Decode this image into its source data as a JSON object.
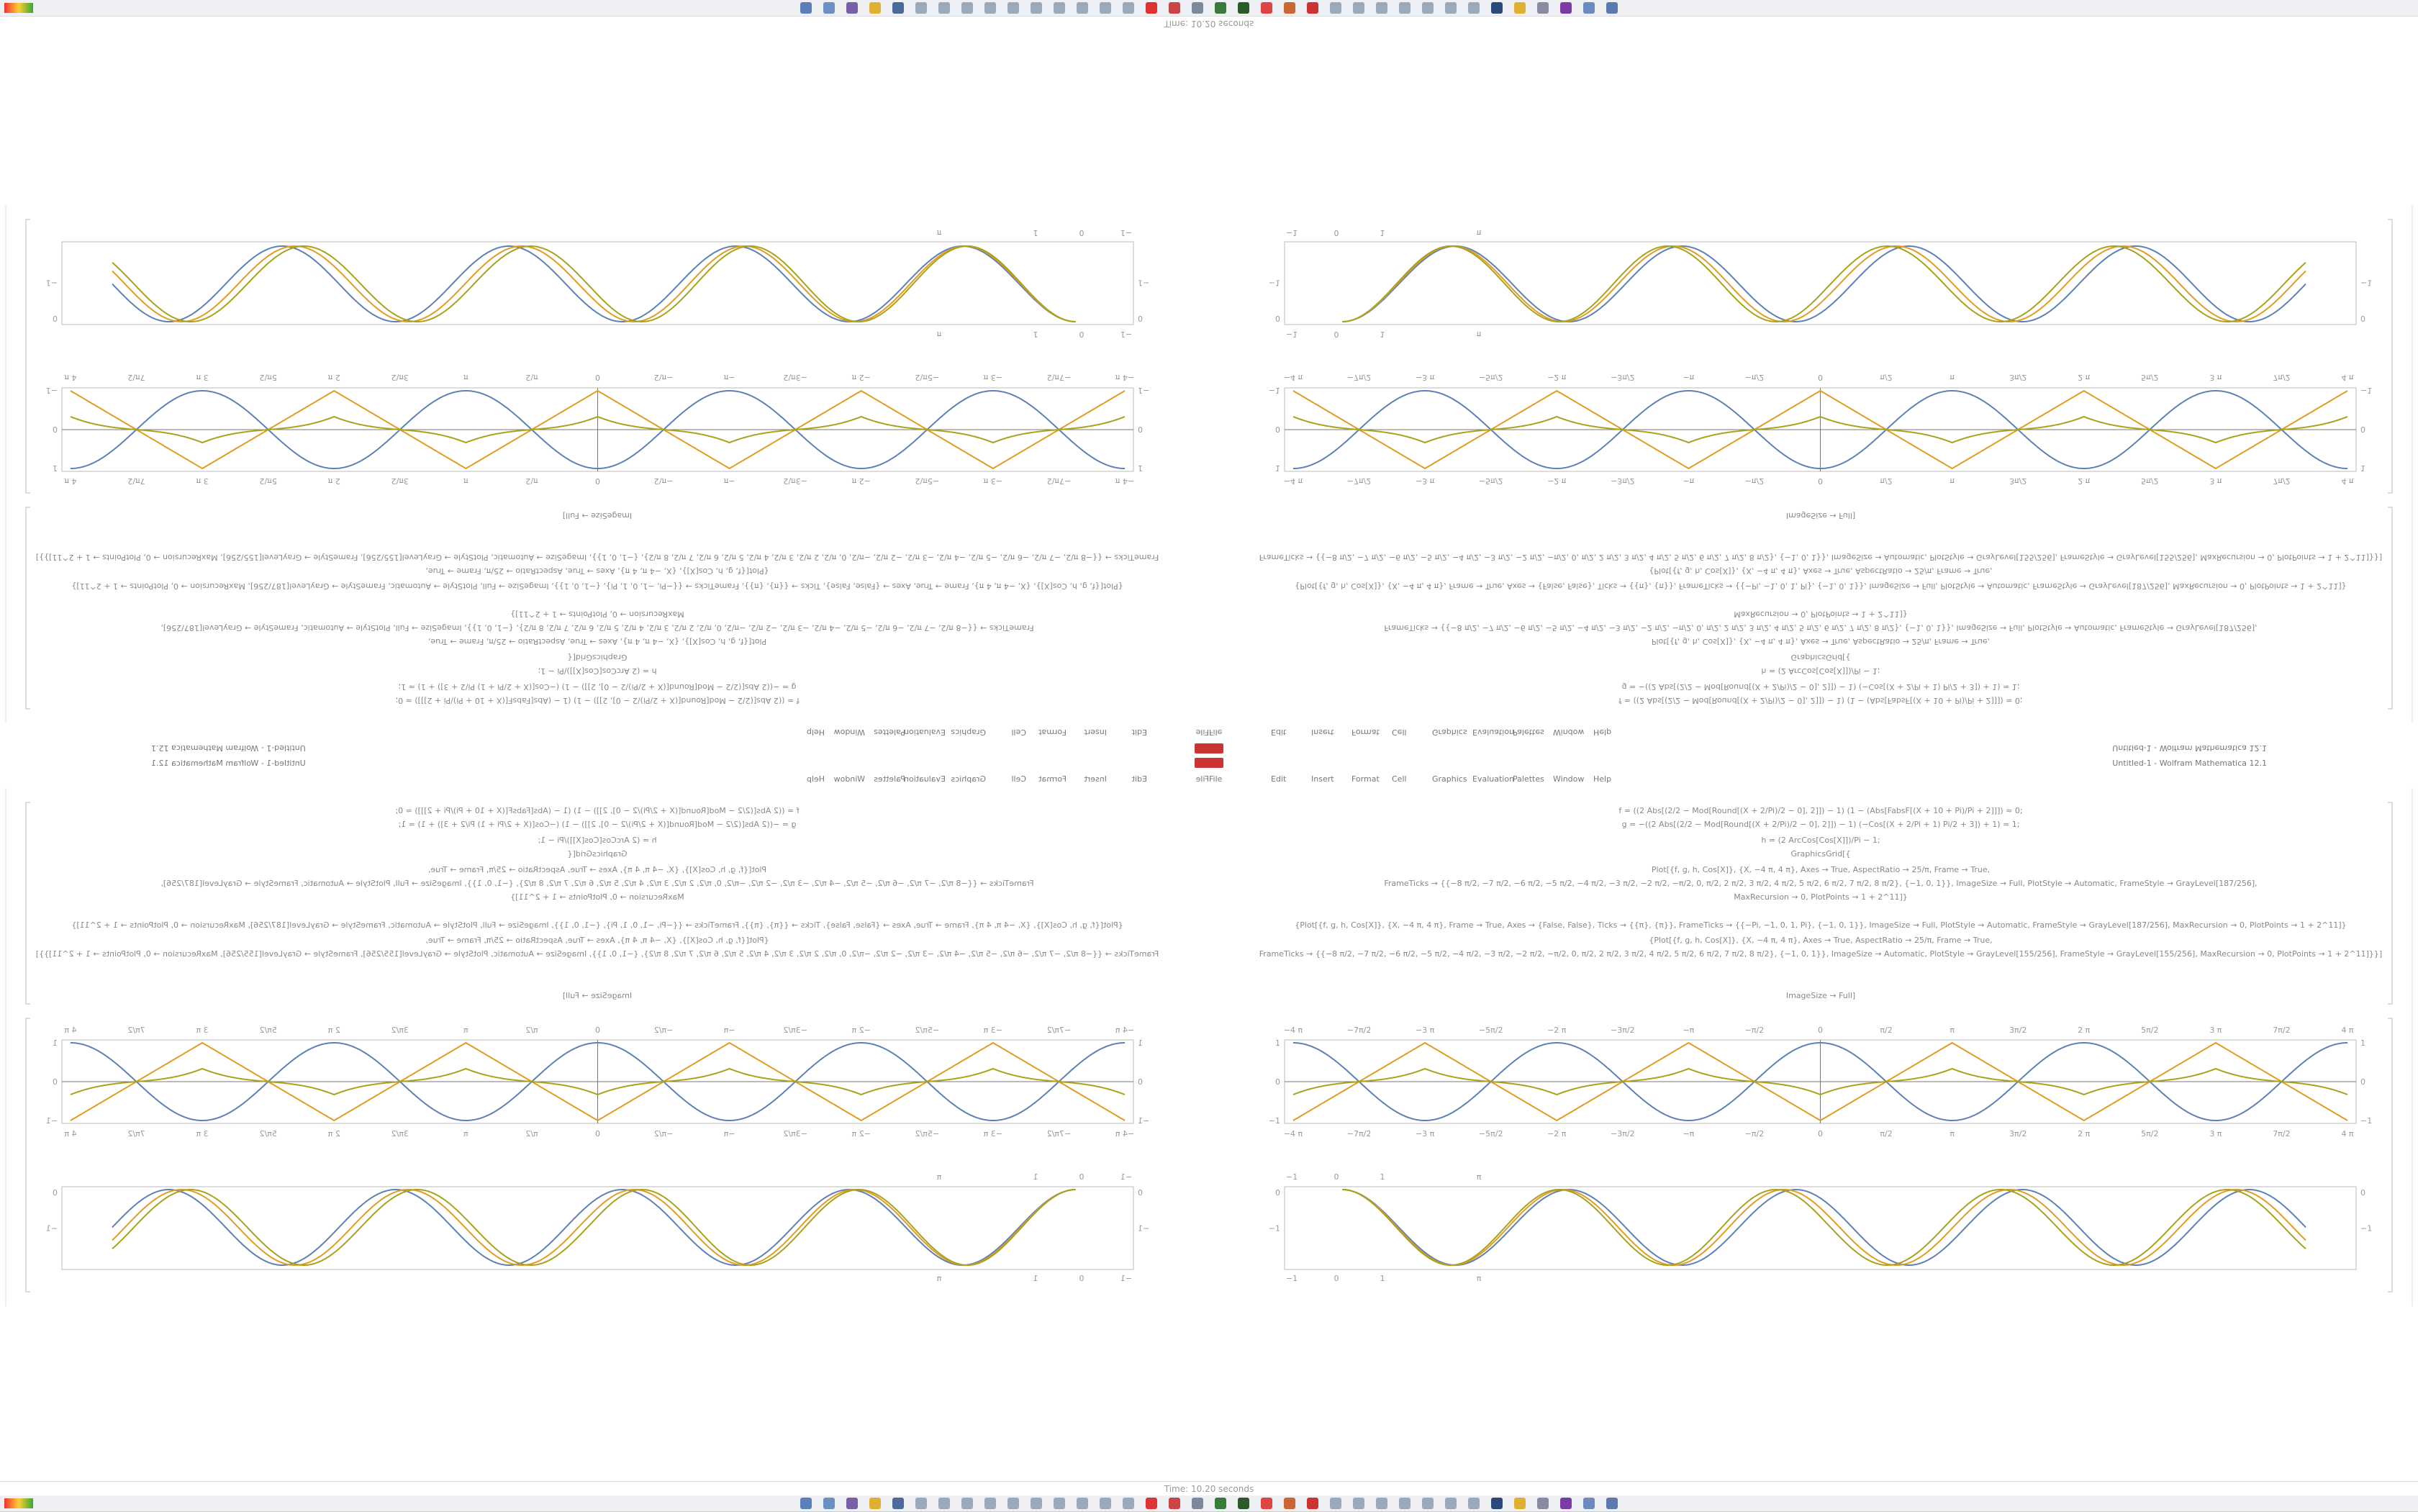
{
  "status": "Time: 10.20 seconds",
  "window_title": "Untitled-1 - Wolfram Mathematica 12.1",
  "menu": [
    "File",
    "Edit",
    "Insert",
    "Format",
    "Cell",
    "Graphics",
    "Evaluation",
    "Palettes",
    "Window",
    "Help"
  ],
  "notebook": {
    "code_lines": [
      "f = ((2 Abs[(2/2 − Mod[Round[(X + 2/Pi)/2 − 0], 2]]) − 1) (1 − (Abs[FabsF[(X + 10 + Pi)/Pi + 2]]]) ≈ 0;",
      "g = −((2 Abs[(2/2 − Mod[Round[(X + 2/Pi)/2 − 0], 2]]) − 1) (−Cos[(X + 2/Pi + 1) Pi/2 + 3]) + 1) ≈ 1;",
      "h = (2 ArcCos[Cos[X]])/Pi − 1;",
      "GraphicsGrid[{",
      "Plot[{f, g, h, Cos[X]}, {X, −4 π, 4 π}, Axes → True, AspectRatio → 25/π, Frame → True,",
      "FrameTicks → {{−8 π/2, −7 π/2, −6 π/2, −5 π/2, −4 π/2, −3 π/2, −2 π/2, −π/2, 0, π/2, 2 π/2, 3 π/2, 4 π/2, 5 π/2, 6 π/2, 7 π/2, 8 π/2}, {−1, 0, 1}}, ImageSize → Full, PlotStyle → Automatic, FrameStyle → GrayLevel[187/256],",
      "MaxRecursion → 0, PlotPoints → 1 + 2^11]}",
      "{Plot[{f, g, h, Cos[X]}, {X, −4 π, 4 π}, Frame → True, Axes → {False, False}, Ticks → {{π}, {π}}, FrameTicks → {{−Pi, −1, 0, 1, Pi}, {−1, 0, 1}}, ImageSize → Full, PlotStyle → Automatic, FrameStyle → GrayLevel[187/256], MaxRecursion → 0, PlotPoints → 1 + 2^11]}",
      "{Plot[{f, g, h, Cos[X]}, {X, −4 π, 4 π}, Axes → True, AspectRatio → 25/π, Frame → True,",
      "FrameTicks → {{−8 π/2, −7 π/2, −6 π/2, −5 π/2, −4 π/2, −3 π/2, −2 π/2, −π/2, 0, π/2, 2 π/2, 3 π/2, 4 π/2, 5 π/2, 6 π/2, 7 π/2, 8 π/2}, {−1, 0, 1}}, ImageSize → Automatic, PlotStyle → GrayLevel[155/256], FrameStyle → GrayLevel[155/256], MaxRecursion → 0, PlotPoints → 1 + 2^11]}}]",
      "ImageSize → Full]"
    ],
    "plot_a": {
      "x_ticks": [
        "−4 π",
        "−7π/2",
        "−3 π",
        "−5π/2",
        "−2 π",
        "−3π/2",
        "−π",
        "−π/2",
        "0",
        "π/2",
        "π",
        "3π/2",
        "2 π",
        "5π/2",
        "3 π",
        "7π/2",
        "4 π"
      ],
      "y_ticks": [
        "−1",
        "0",
        "1"
      ]
    },
    "plot_b": {
      "top_ticks": [
        "−1",
        "0",
        "1",
        "π"
      ],
      "y_ticks": [
        "0",
        "−1"
      ]
    }
  }
}
